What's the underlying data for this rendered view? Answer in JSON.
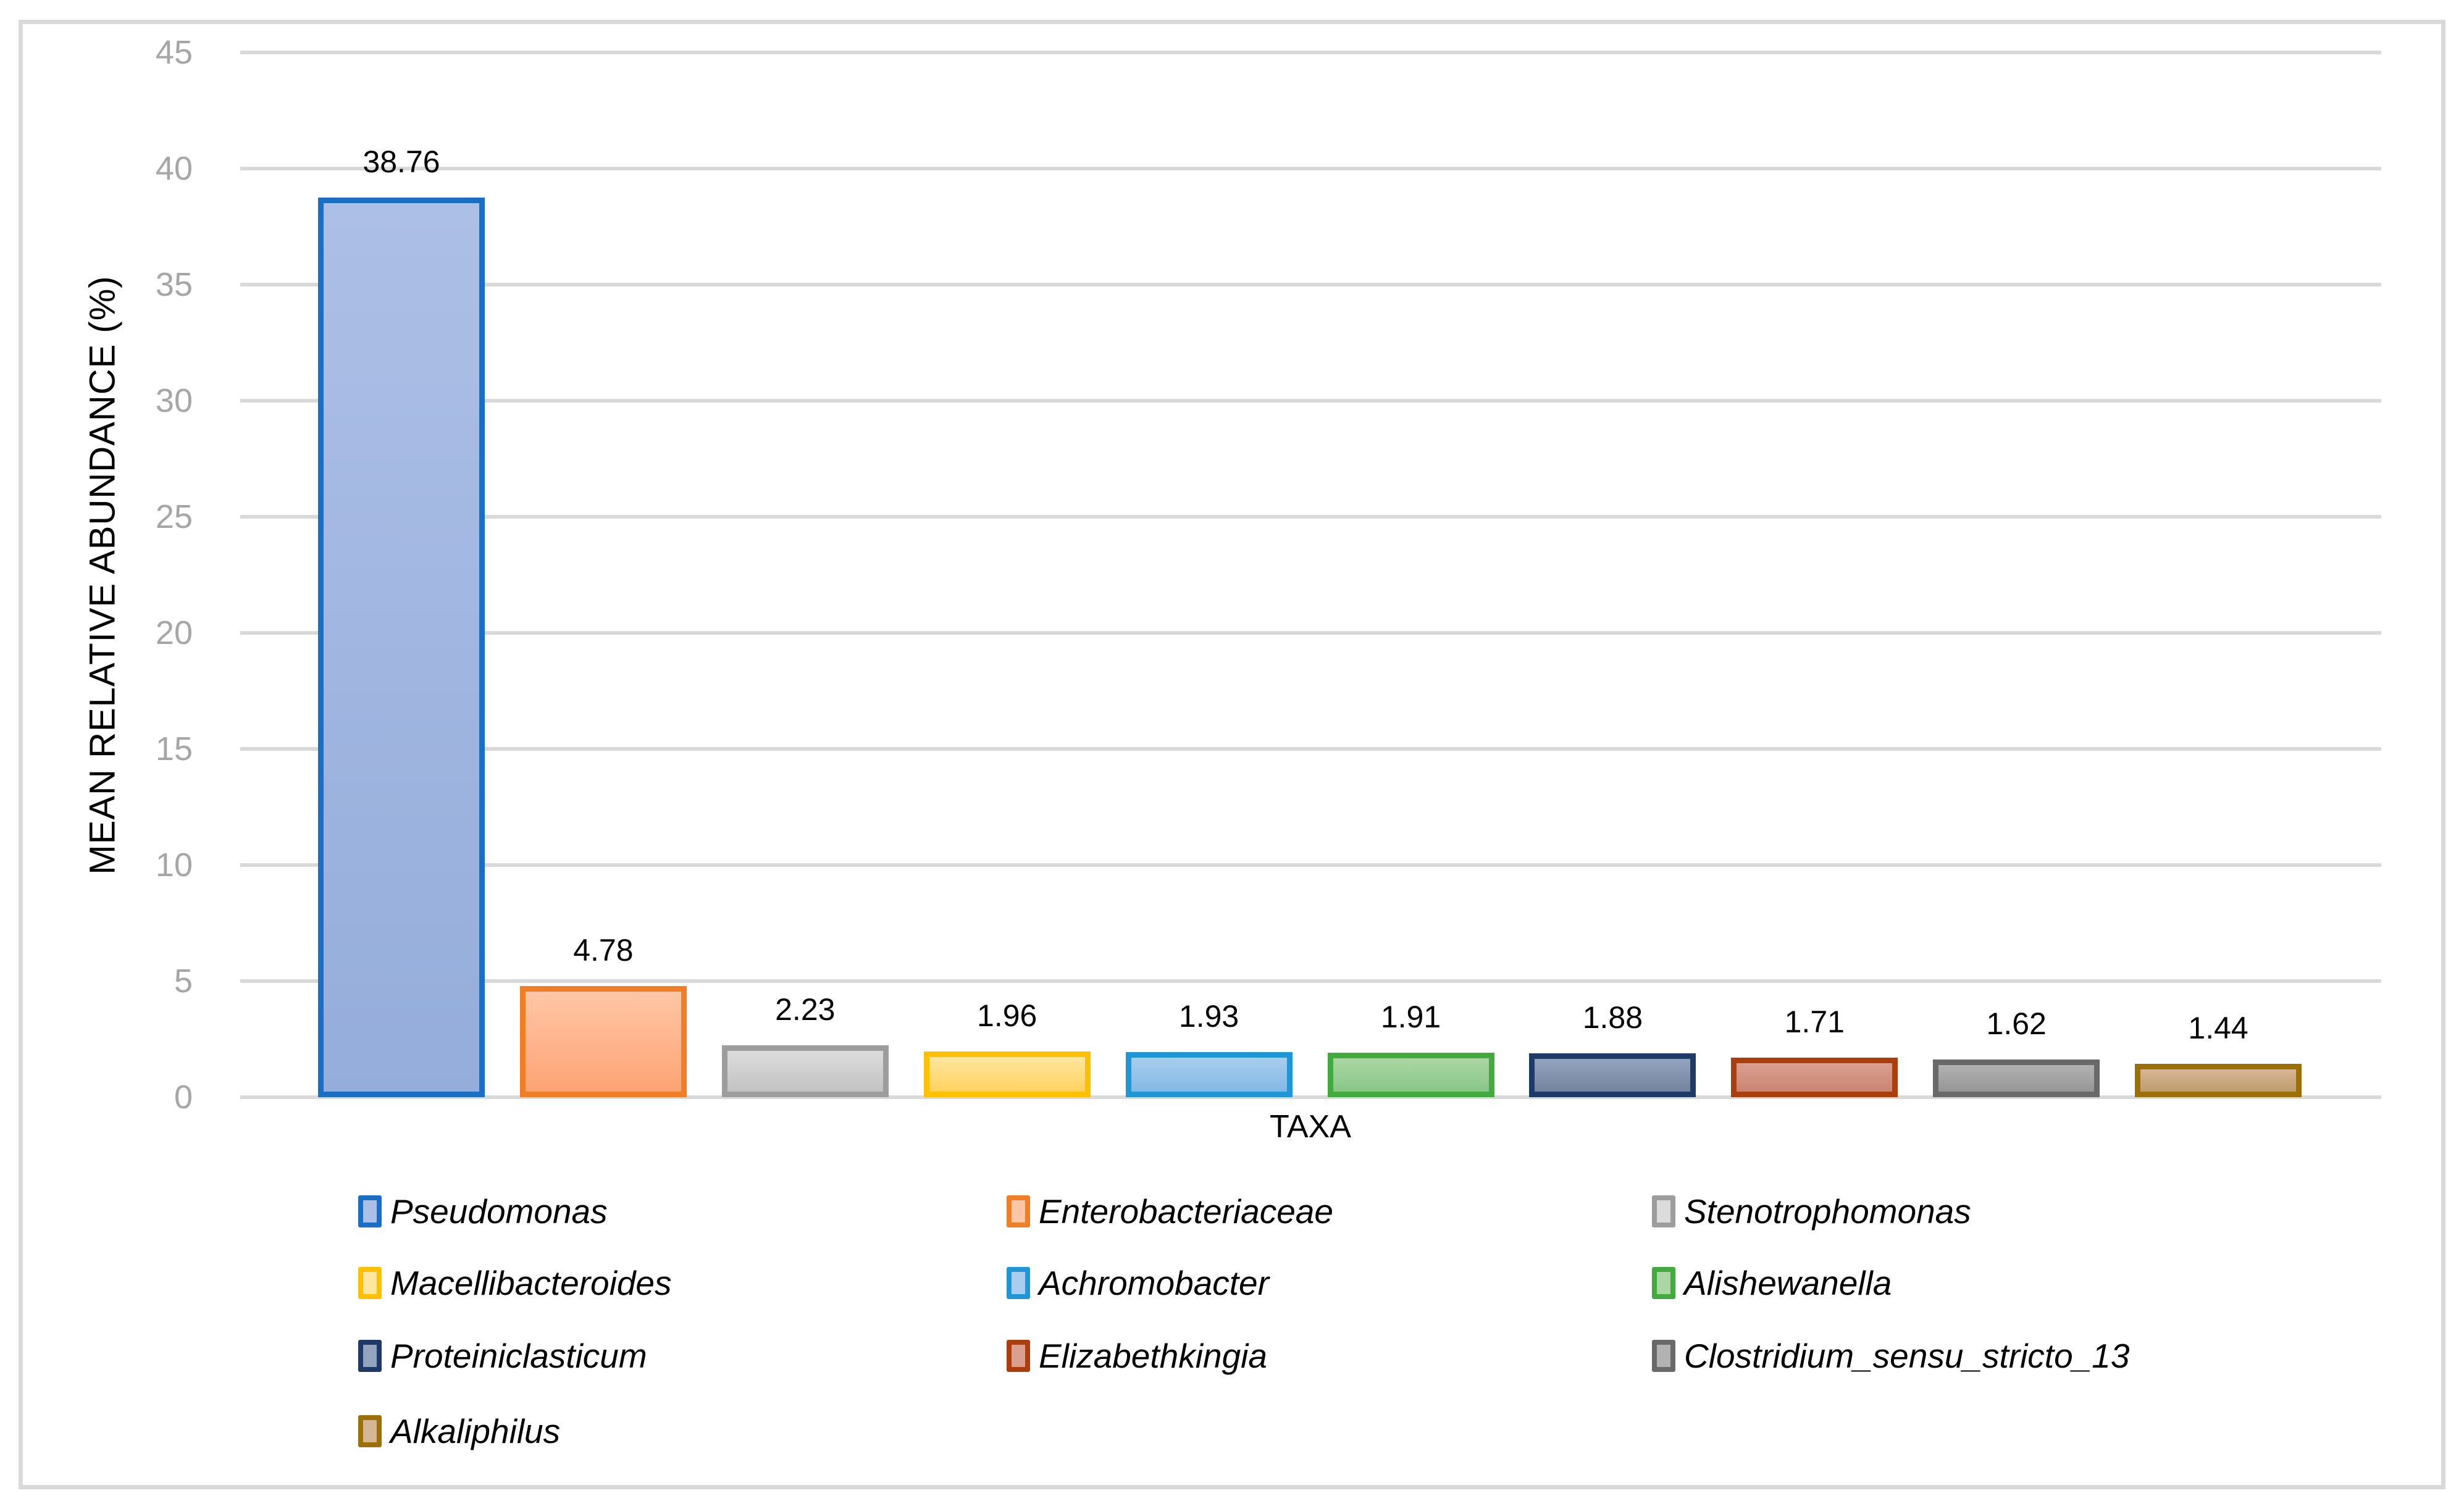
{
  "figure": {
    "background": "#FFFFFF",
    "frame_border_color": "#D9D9D9"
  },
  "chart_data": {
    "type": "bar",
    "title": "",
    "xlabel": "TAXA",
    "ylabel": "MEAN RELATIVE ABUNDANCE (%)",
    "ylim": [
      0,
      45
    ],
    "ytick_interval": 5,
    "yticks": [
      0,
      5,
      10,
      15,
      20,
      25,
      30,
      35,
      40,
      45
    ],
    "grid": true,
    "gridline_color": "#D9D9D9",
    "tick_label_color": "#A6A6A6",
    "categories": [
      "Pseudomonas",
      "Enterobacteriaceae",
      "Stenotrophomonas",
      "Macellibacteroides",
      "Achromobacter",
      "Alishewanella",
      "Proteiniclasticum",
      "Elizabethkingia",
      "Clostridium_sensu_stricto_13",
      "Alkaliphilus"
    ],
    "values": [
      38.76,
      4.78,
      2.23,
      1.96,
      1.93,
      1.91,
      1.88,
      1.71,
      1.62,
      1.44
    ],
    "data_labels": [
      "38.76",
      "4.78",
      "2.23",
      "1.96",
      "1.93",
      "1.91",
      "1.88",
      "1.71",
      "1.62",
      "1.44"
    ],
    "colors": [
      {
        "fill_top": "#ACBFE6",
        "fill_bottom": "#95ADDB",
        "border": "#1A6FC4"
      },
      {
        "fill_top": "#FFC6A5",
        "fill_bottom": "#FDA374",
        "border": "#F07E26"
      },
      {
        "fill_top": "#DCDCDC",
        "fill_bottom": "#C2C2C2",
        "border": "#9D9D9D"
      },
      {
        "fill_top": "#FFE6A0",
        "fill_bottom": "#FFD25F",
        "border": "#FFC000"
      },
      {
        "fill_top": "#A8CDEE",
        "fill_bottom": "#82B9E4",
        "border": "#2196D6"
      },
      {
        "fill_top": "#ACD6A4",
        "fill_bottom": "#87C687",
        "border": "#43AA3E"
      },
      {
        "fill_top": "#95A4BE",
        "fill_bottom": "#72839E",
        "border": "#1E3A66"
      },
      {
        "fill_top": "#DB9F8F",
        "fill_bottom": "#CA8472",
        "border": "#AC3E0E"
      },
      {
        "fill_top": "#B2B2B2",
        "fill_bottom": "#969696",
        "border": "#696969"
      },
      {
        "fill_top": "#D6B795",
        "fill_bottom": "#BE9C6E",
        "border": "#9C7009"
      }
    ],
    "legend_position": "bottom"
  }
}
